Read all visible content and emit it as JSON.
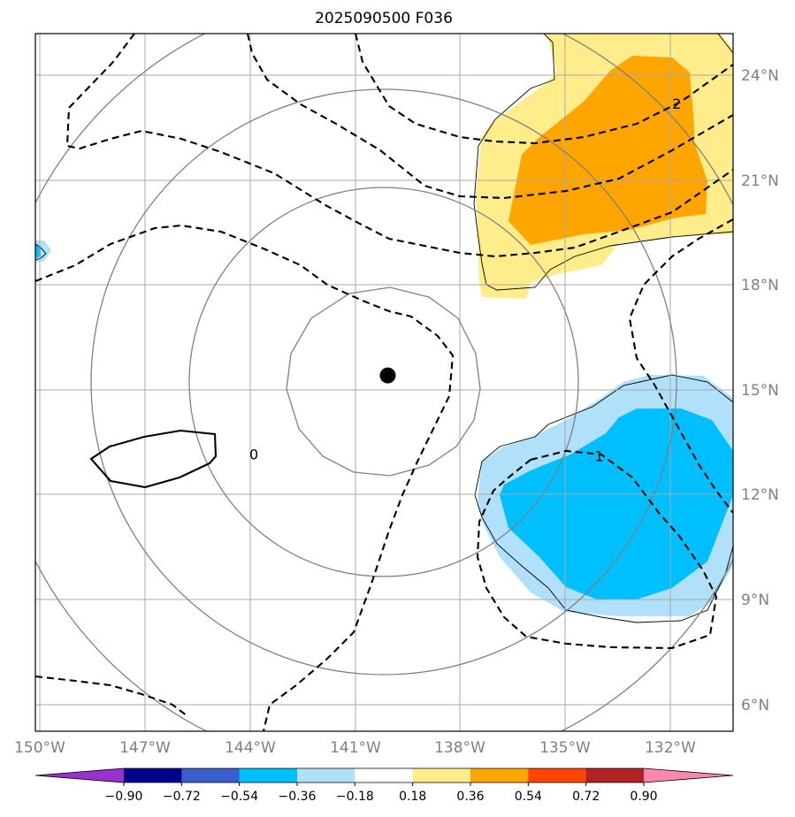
{
  "title": "2025090500 F036",
  "map": {
    "lon_range": [
      -150.2,
      -130.4
    ],
    "lat_range": [
      5.0,
      25.0
    ],
    "lon_ticks": [
      {
        "value": -150,
        "label": "150°W"
      },
      {
        "value": -147,
        "label": "147°W"
      },
      {
        "value": -144,
        "label": "144°W"
      },
      {
        "value": -141,
        "label": "141°W"
      },
      {
        "value": -138,
        "label": "138°W"
      },
      {
        "value": -135,
        "label": "135°W"
      },
      {
        "value": -132,
        "label": "132°W"
      }
    ],
    "lat_ticks": [
      {
        "value": 24,
        "label": "24°N"
      },
      {
        "value": 21,
        "label": "21°N"
      },
      {
        "value": 18,
        "label": "18°N"
      },
      {
        "value": 15,
        "label": "15°N"
      },
      {
        "value": 12,
        "label": "12°N"
      },
      {
        "value": 9,
        "label": "9°N"
      },
      {
        "value": 6,
        "label": "6°N"
      }
    ],
    "storm_center": {
      "lon": -140.2,
      "lat": 15.2
    },
    "contour_labels": [
      {
        "text": "2",
        "lon": -132.0,
        "lat": 23.0
      },
      {
        "text": "1",
        "lon": -134.2,
        "lat": 12.9
      },
      {
        "text": "0",
        "lon": -144.0,
        "lat": 12.95
      }
    ]
  },
  "colorbar": {
    "ticks": [
      "−0.90",
      "−0.72",
      "−0.54",
      "−0.36",
      "−0.18",
      "0.18",
      "0.36",
      "0.54",
      "0.72",
      "0.90"
    ],
    "colors": [
      "#9932cc",
      "#00008b",
      "#3a5fcd",
      "#00bfff",
      "#b0e0fa",
      "#ffffff",
      "#ffec8b",
      "#ffa500",
      "#ff4500",
      "#b22222",
      "#ff88aa"
    ],
    "under_color": "#9932cc",
    "over_color": "#ff88aa"
  }
}
